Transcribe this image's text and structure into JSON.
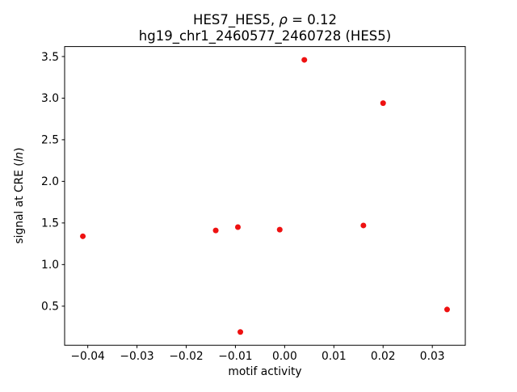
{
  "chart_data": {
    "type": "scatter",
    "title_line1_prefix": "HES7_HES5, ",
    "title_rho": "ρ",
    "title_line1_suffix": " = 0.12",
    "title_line2": "hg19_chr1_2460577_2460728 (HES5)",
    "xlabel": "motif activity",
    "ylabel_prefix": "signal at CRE (",
    "ylabel_italic": "ln",
    "ylabel_suffix": ")",
    "x": [
      -0.041,
      -0.014,
      -0.0095,
      -0.009,
      -0.001,
      0.004,
      0.016,
      0.02,
      0.033
    ],
    "y": [
      1.34,
      1.41,
      1.45,
      0.19,
      1.42,
      3.46,
      1.47,
      2.94,
      0.46
    ],
    "xlim": [
      -0.0447,
      0.0367
    ],
    "ylim": [
      0.03,
      3.62
    ],
    "xticks": [
      -0.04,
      -0.03,
      -0.02,
      -0.01,
      0.0,
      0.01,
      0.02,
      0.03
    ],
    "yticks": [
      0.5,
      1.0,
      1.5,
      2.0,
      2.5,
      3.0,
      3.5
    ],
    "marker_color": "#ee1111",
    "legend": "none",
    "grid": "off"
  }
}
